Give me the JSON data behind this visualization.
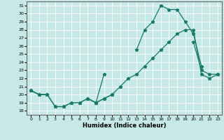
{
  "xlabel": "Humidex (Indice chaleur)",
  "background_color": "#c6e8e6",
  "grid_color": "#ffffff",
  "line_color": "#1a7a6a",
  "x": [
    0,
    1,
    2,
    3,
    4,
    5,
    6,
    7,
    8,
    9,
    10,
    11,
    12,
    13,
    14,
    15,
    16,
    17,
    18,
    19,
    20,
    21,
    22,
    23
  ],
  "line1": [
    20.5,
    20.0,
    20.0,
    18.5,
    18.5,
    19.0,
    19.0,
    19.5,
    19.0,
    19.5,
    20.0,
    21.0,
    22.0,
    22.5,
    23.5,
    24.5,
    25.5,
    26.5,
    27.5,
    28.0,
    28.0,
    22.5,
    22.0,
    22.5
  ],
  "line2": [
    20.5,
    20.0,
    20.0,
    18.5,
    18.5,
    19.0,
    19.0,
    19.5,
    19.0,
    22.5,
    null,
    null,
    null,
    null,
    null,
    null,
    null,
    null,
    null,
    null,
    26.5,
    23.0,
    22.5,
    22.5
  ],
  "line3": [
    20.5,
    20.0,
    20.0,
    null,
    null,
    null,
    null,
    19.5,
    19.0,
    19.5,
    20.0,
    null,
    null,
    25.5,
    28.0,
    29.0,
    31.0,
    30.5,
    30.5,
    29.0,
    27.5,
    23.5,
    null,
    null
  ],
  "ylim": [
    17.5,
    31.5
  ],
  "xlim": [
    -0.5,
    23.5
  ],
  "yticks": [
    18,
    19,
    20,
    21,
    22,
    23,
    24,
    25,
    26,
    27,
    28,
    29,
    30,
    31
  ],
  "xticks": [
    0,
    1,
    2,
    3,
    4,
    5,
    6,
    7,
    8,
    9,
    10,
    11,
    12,
    13,
    14,
    15,
    16,
    17,
    18,
    19,
    20,
    21,
    22,
    23
  ]
}
